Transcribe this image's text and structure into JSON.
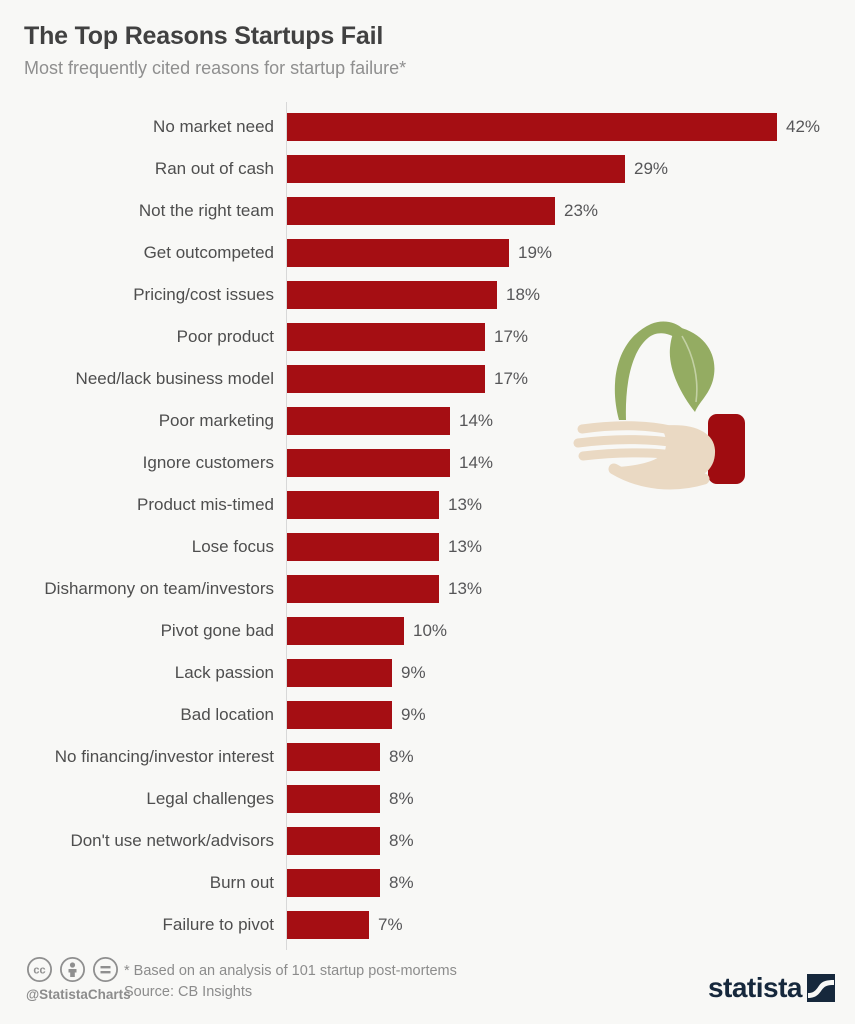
{
  "header": {
    "title": "The Top Reasons Startups Fail",
    "subtitle": "Most frequently cited reasons for startup failure*"
  },
  "chart_data": {
    "type": "bar",
    "orientation": "horizontal",
    "title": "The Top Reasons Startups Fail",
    "subtitle": "Most frequently cited reasons for startup failure*",
    "categories": [
      "No market need",
      "Ran out of cash",
      "Not the right team",
      "Get outcompeted",
      "Pricing/cost issues",
      "Poor product",
      "Need/lack business model",
      "Poor marketing",
      "Ignore customers",
      "Product mis-timed",
      "Lose focus",
      "Disharmony on team/investors",
      "Pivot gone bad",
      "Lack passion",
      "Bad location",
      "No financing/investor interest",
      "Legal challenges",
      "Don't use network/advisors",
      "Burn out",
      "Failure to pivot"
    ],
    "values": [
      42,
      29,
      23,
      19,
      18,
      17,
      17,
      14,
      14,
      13,
      13,
      13,
      10,
      9,
      9,
      8,
      8,
      8,
      8,
      7
    ],
    "value_suffix": "%",
    "xlim": [
      0,
      45
    ],
    "grid": false,
    "legend": false,
    "bar_color": "#a50e13",
    "axis_color": "#d8d8d8"
  },
  "illustration": {
    "name": "hand-holding-sprout",
    "leaf_color": "#94ac62",
    "vein_color": "#c3d1a4",
    "hand_color": "#ead9c3",
    "sleeve_color": "#9f0c10"
  },
  "footer": {
    "license_icons": [
      "cc-icon",
      "attribution-person-icon",
      "equal-icon"
    ],
    "handle": "@StatistaCharts",
    "note": "* Based on an analysis of 101 startup post-mortems",
    "source": "Source: CB Insights",
    "brand": "statista",
    "brand_color": "#16283c",
    "icon_color": "#8f8f8f"
  }
}
